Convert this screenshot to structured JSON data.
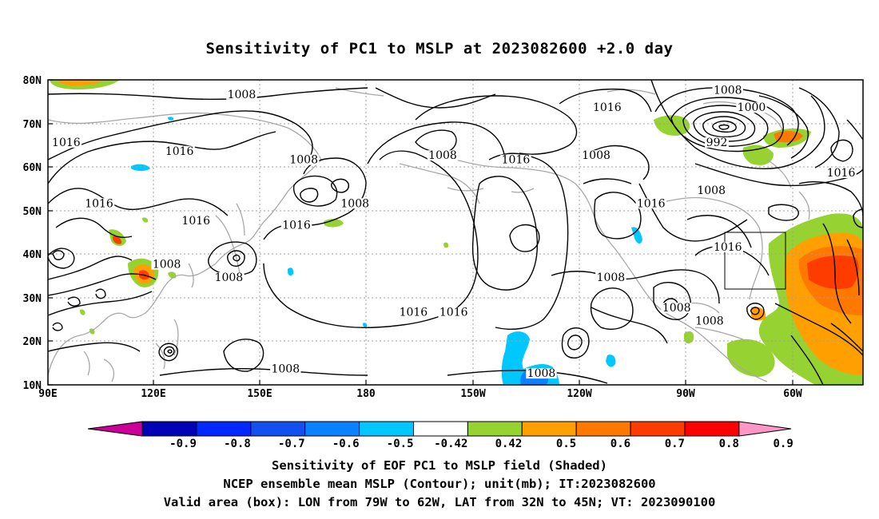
{
  "title": "Sensitivity of PC1 to MSLP at 2023082600 +2.0 day",
  "map": {
    "lon_labels": [
      "90E",
      "120E",
      "150E",
      "180",
      "150W",
      "120W",
      "90W",
      "60W"
    ],
    "lat_labels": [
      "80N",
      "70N",
      "60N",
      "50N",
      "40N",
      "30N",
      "20N",
      "10N"
    ],
    "extent": {
      "lon_west": 90,
      "lon_east": 313,
      "lat_south": 10,
      "lat_north": 80
    },
    "valid_box": {
      "lon_west": -79,
      "lon_east": -62,
      "lat_south": 32,
      "lat_north": 45
    },
    "contour_labels": [
      {
        "text": "1008",
        "lon": 143.0,
        "lat": 76
      },
      {
        "text": "1016",
        "lon": 95.0,
        "lat": 65
      },
      {
        "text": "1016",
        "lon": 126.0,
        "lat": 63
      },
      {
        "text": "1008",
        "lon": 160.0,
        "lat": 61
      },
      {
        "text": "1016",
        "lon": 104.0,
        "lat": 51
      },
      {
        "text": "1016",
        "lon": 130.5,
        "lat": 47
      },
      {
        "text": "1008",
        "lon": 174.0,
        "lat": 51
      },
      {
        "text": "1016",
        "lon": 158.0,
        "lat": 46
      },
      {
        "text": "1008",
        "lon": 122.5,
        "lat": 37
      },
      {
        "text": "1008",
        "lon": 139.5,
        "lat": 34
      },
      {
        "text": "1008",
        "lon": 198.0,
        "lat": 62
      },
      {
        "text": "1016",
        "lon": 218.0,
        "lat": 61
      },
      {
        "text": "1016",
        "lon": 243.0,
        "lat": 73
      },
      {
        "text": "1008",
        "lon": 240.0,
        "lat": 62
      },
      {
        "text": "1008",
        "lon": 276.0,
        "lat": 77
      },
      {
        "text": "1000",
        "lon": 282.5,
        "lat": 73
      },
      {
        "text": "992",
        "lon": 273.0,
        "lat": 65
      },
      {
        "text": "1016",
        "lon": 255.0,
        "lat": 51
      },
      {
        "text": "1008",
        "lon": 271.5,
        "lat": 54
      },
      {
        "text": "1016",
        "lon": 307.0,
        "lat": 58
      },
      {
        "text": "1016",
        "lon": 276.0,
        "lat": 41
      },
      {
        "text": "1008",
        "lon": 244.0,
        "lat": 34
      },
      {
        "text": "1008",
        "lon": 262.0,
        "lat": 27
      },
      {
        "text": "1008",
        "lon": 271.0,
        "lat": 24
      },
      {
        "text": "1016",
        "lon": 190.0,
        "lat": 26
      },
      {
        "text": "1016",
        "lon": 201.0,
        "lat": 26
      },
      {
        "text": "1008",
        "lon": 155.0,
        "lat": 13
      },
      {
        "text": "1008",
        "lon": 225.0,
        "lat": 12
      }
    ]
  },
  "colorbar": {
    "labels": [
      "-0.9",
      "-0.8",
      "-0.7",
      "-0.6",
      "-0.5",
      "-0.42",
      "0.42",
      "0.5",
      "0.6",
      "0.7",
      "0.8",
      "0.9"
    ],
    "colors": [
      "#cc0099",
      "#0000b4",
      "#0028ff",
      "#1450f0",
      "#0a82ff",
      "#00c8ff",
      "#ffffff",
      "#96d232",
      "#ffa000",
      "#ff7800",
      "#ff3c00",
      "#ff0000",
      "#ff96c8"
    ]
  },
  "captions": {
    "line1": "Sensitivity of EOF PC1 to MSLP field (Shaded)",
    "line2": "NCEP ensemble mean MSLP (Contour); unit(mb); IT:2023082600",
    "line3": "Valid area (box): LON from 79W to 62W, LAT from 32N to 45N; VT: 2023090100"
  }
}
